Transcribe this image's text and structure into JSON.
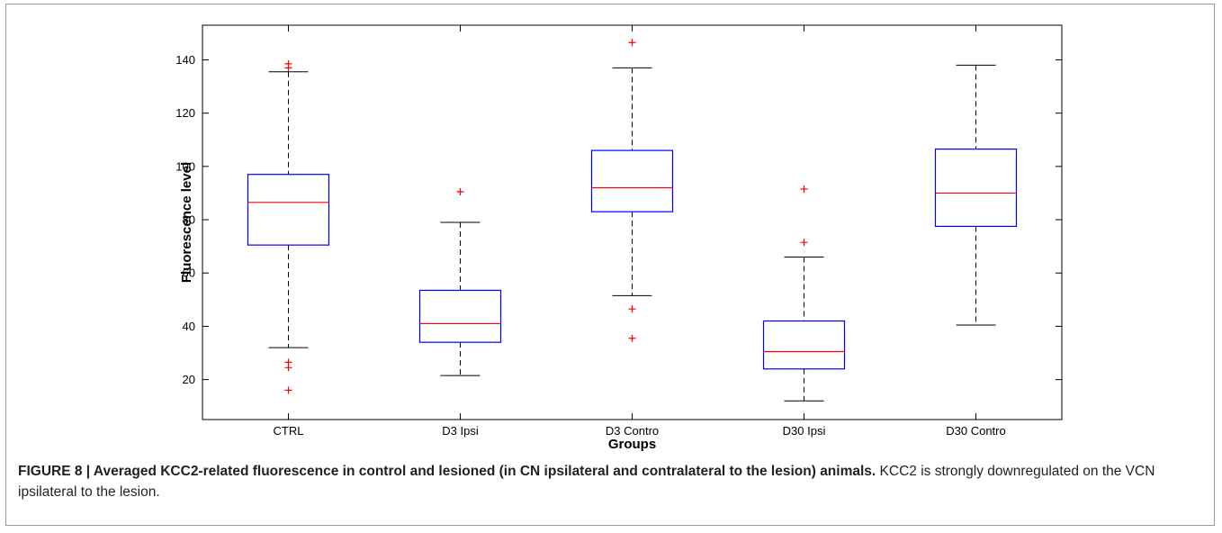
{
  "chart_data": {
    "type": "box",
    "xlabel": "Groups",
    "ylabel": "Fluorescence level",
    "ylim": [
      5,
      153
    ],
    "yticks": [
      20,
      40,
      60,
      80,
      100,
      120,
      140
    ],
    "grid": false,
    "colors": {
      "box": "#0000ff",
      "median": "#ff0000",
      "whisker": "#000000",
      "outlier": "#ff0000"
    },
    "categories": [
      "CTRL",
      "D3 Ipsi",
      "D3 Contro",
      "D30 Ipsi",
      "D30 Contro"
    ],
    "boxes": [
      {
        "category": "CTRL",
        "whisker_low": 32,
        "q1": 70.5,
        "median": 86.5,
        "q3": 97,
        "whisker_high": 135.5,
        "outliers": [
          16,
          24.5,
          26.5,
          137,
          138.5
        ]
      },
      {
        "category": "D3 Ipsi",
        "whisker_low": 21.5,
        "q1": 34,
        "median": 41,
        "q3": 53.5,
        "whisker_high": 79,
        "outliers": [
          90.5
        ]
      },
      {
        "category": "D3 Contro",
        "whisker_low": 51.5,
        "q1": 83,
        "median": 92,
        "q3": 106,
        "whisker_high": 137,
        "outliers": [
          35.5,
          46.5,
          146.5
        ]
      },
      {
        "category": "D30 Ipsi",
        "whisker_low": 12,
        "q1": 24,
        "median": 30.5,
        "q3": 42,
        "whisker_high": 66,
        "outliers": [
          71.5,
          91.5
        ]
      },
      {
        "category": "D30 Contro",
        "whisker_low": 40.5,
        "q1": 77.5,
        "median": 90,
        "q3": 106.5,
        "whisker_high": 138,
        "outliers": []
      }
    ]
  },
  "caption": {
    "label": "FIGURE 8 | Averaged KCC2-related fluorescence in control and lesioned (in CN ipsilateral and contralateral to the lesion) animals.",
    "text": " KCC2 is strongly downregulated on the VCN ipsilateral to the lesion."
  }
}
